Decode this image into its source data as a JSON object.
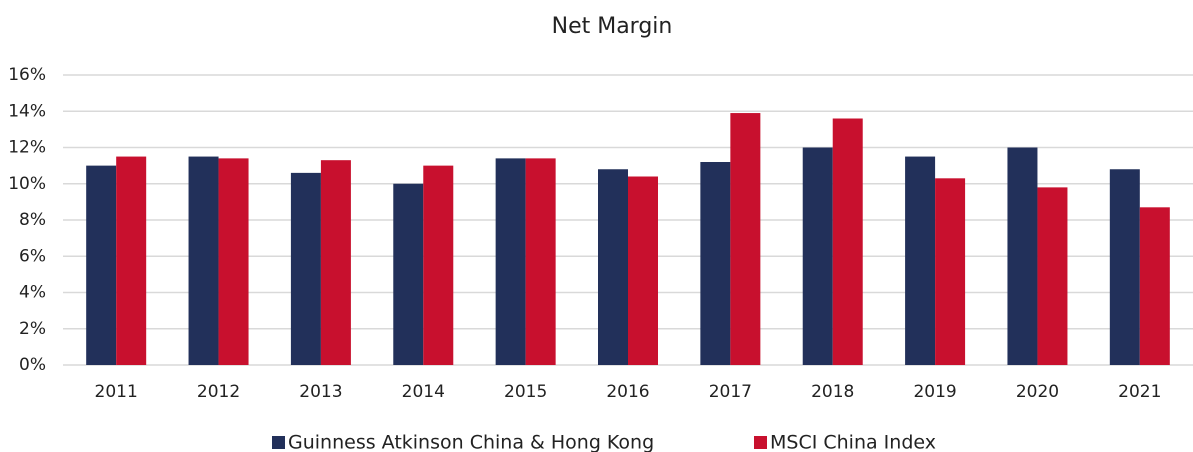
{
  "chart_data": {
    "type": "bar",
    "title": "Net Margin",
    "categories": [
      "2011",
      "2012",
      "2013",
      "2014",
      "2015",
      "2016",
      "2017",
      "2018",
      "2019",
      "2020",
      "2021"
    ],
    "series": [
      {
        "name": "Guinness Atkinson China & Hong Kong",
        "color": "#22305a",
        "values": [
          11.0,
          11.5,
          10.6,
          10.0,
          11.4,
          10.8,
          11.2,
          12.0,
          11.5,
          12.0,
          10.8
        ]
      },
      {
        "name": "MSCI China Index",
        "color": "#c8102e",
        "values": [
          11.5,
          11.4,
          11.3,
          11.0,
          11.4,
          10.4,
          13.9,
          13.6,
          10.3,
          9.8,
          8.7
        ]
      }
    ],
    "ylim": [
      0,
      16
    ],
    "yticks": [
      {
        "value": 0,
        "label": "0%"
      },
      {
        "value": 2,
        "label": "2%"
      },
      {
        "value": 4,
        "label": "4%"
      },
      {
        "value": 6,
        "label": "6%"
      },
      {
        "value": 8,
        "label": "8%"
      },
      {
        "value": 10,
        "label": "10%"
      },
      {
        "value": 12,
        "label": "12%"
      },
      {
        "value": 14,
        "label": "14%"
      },
      {
        "value": 16,
        "label": "16%"
      }
    ],
    "grid": true,
    "legend": "bottom"
  }
}
